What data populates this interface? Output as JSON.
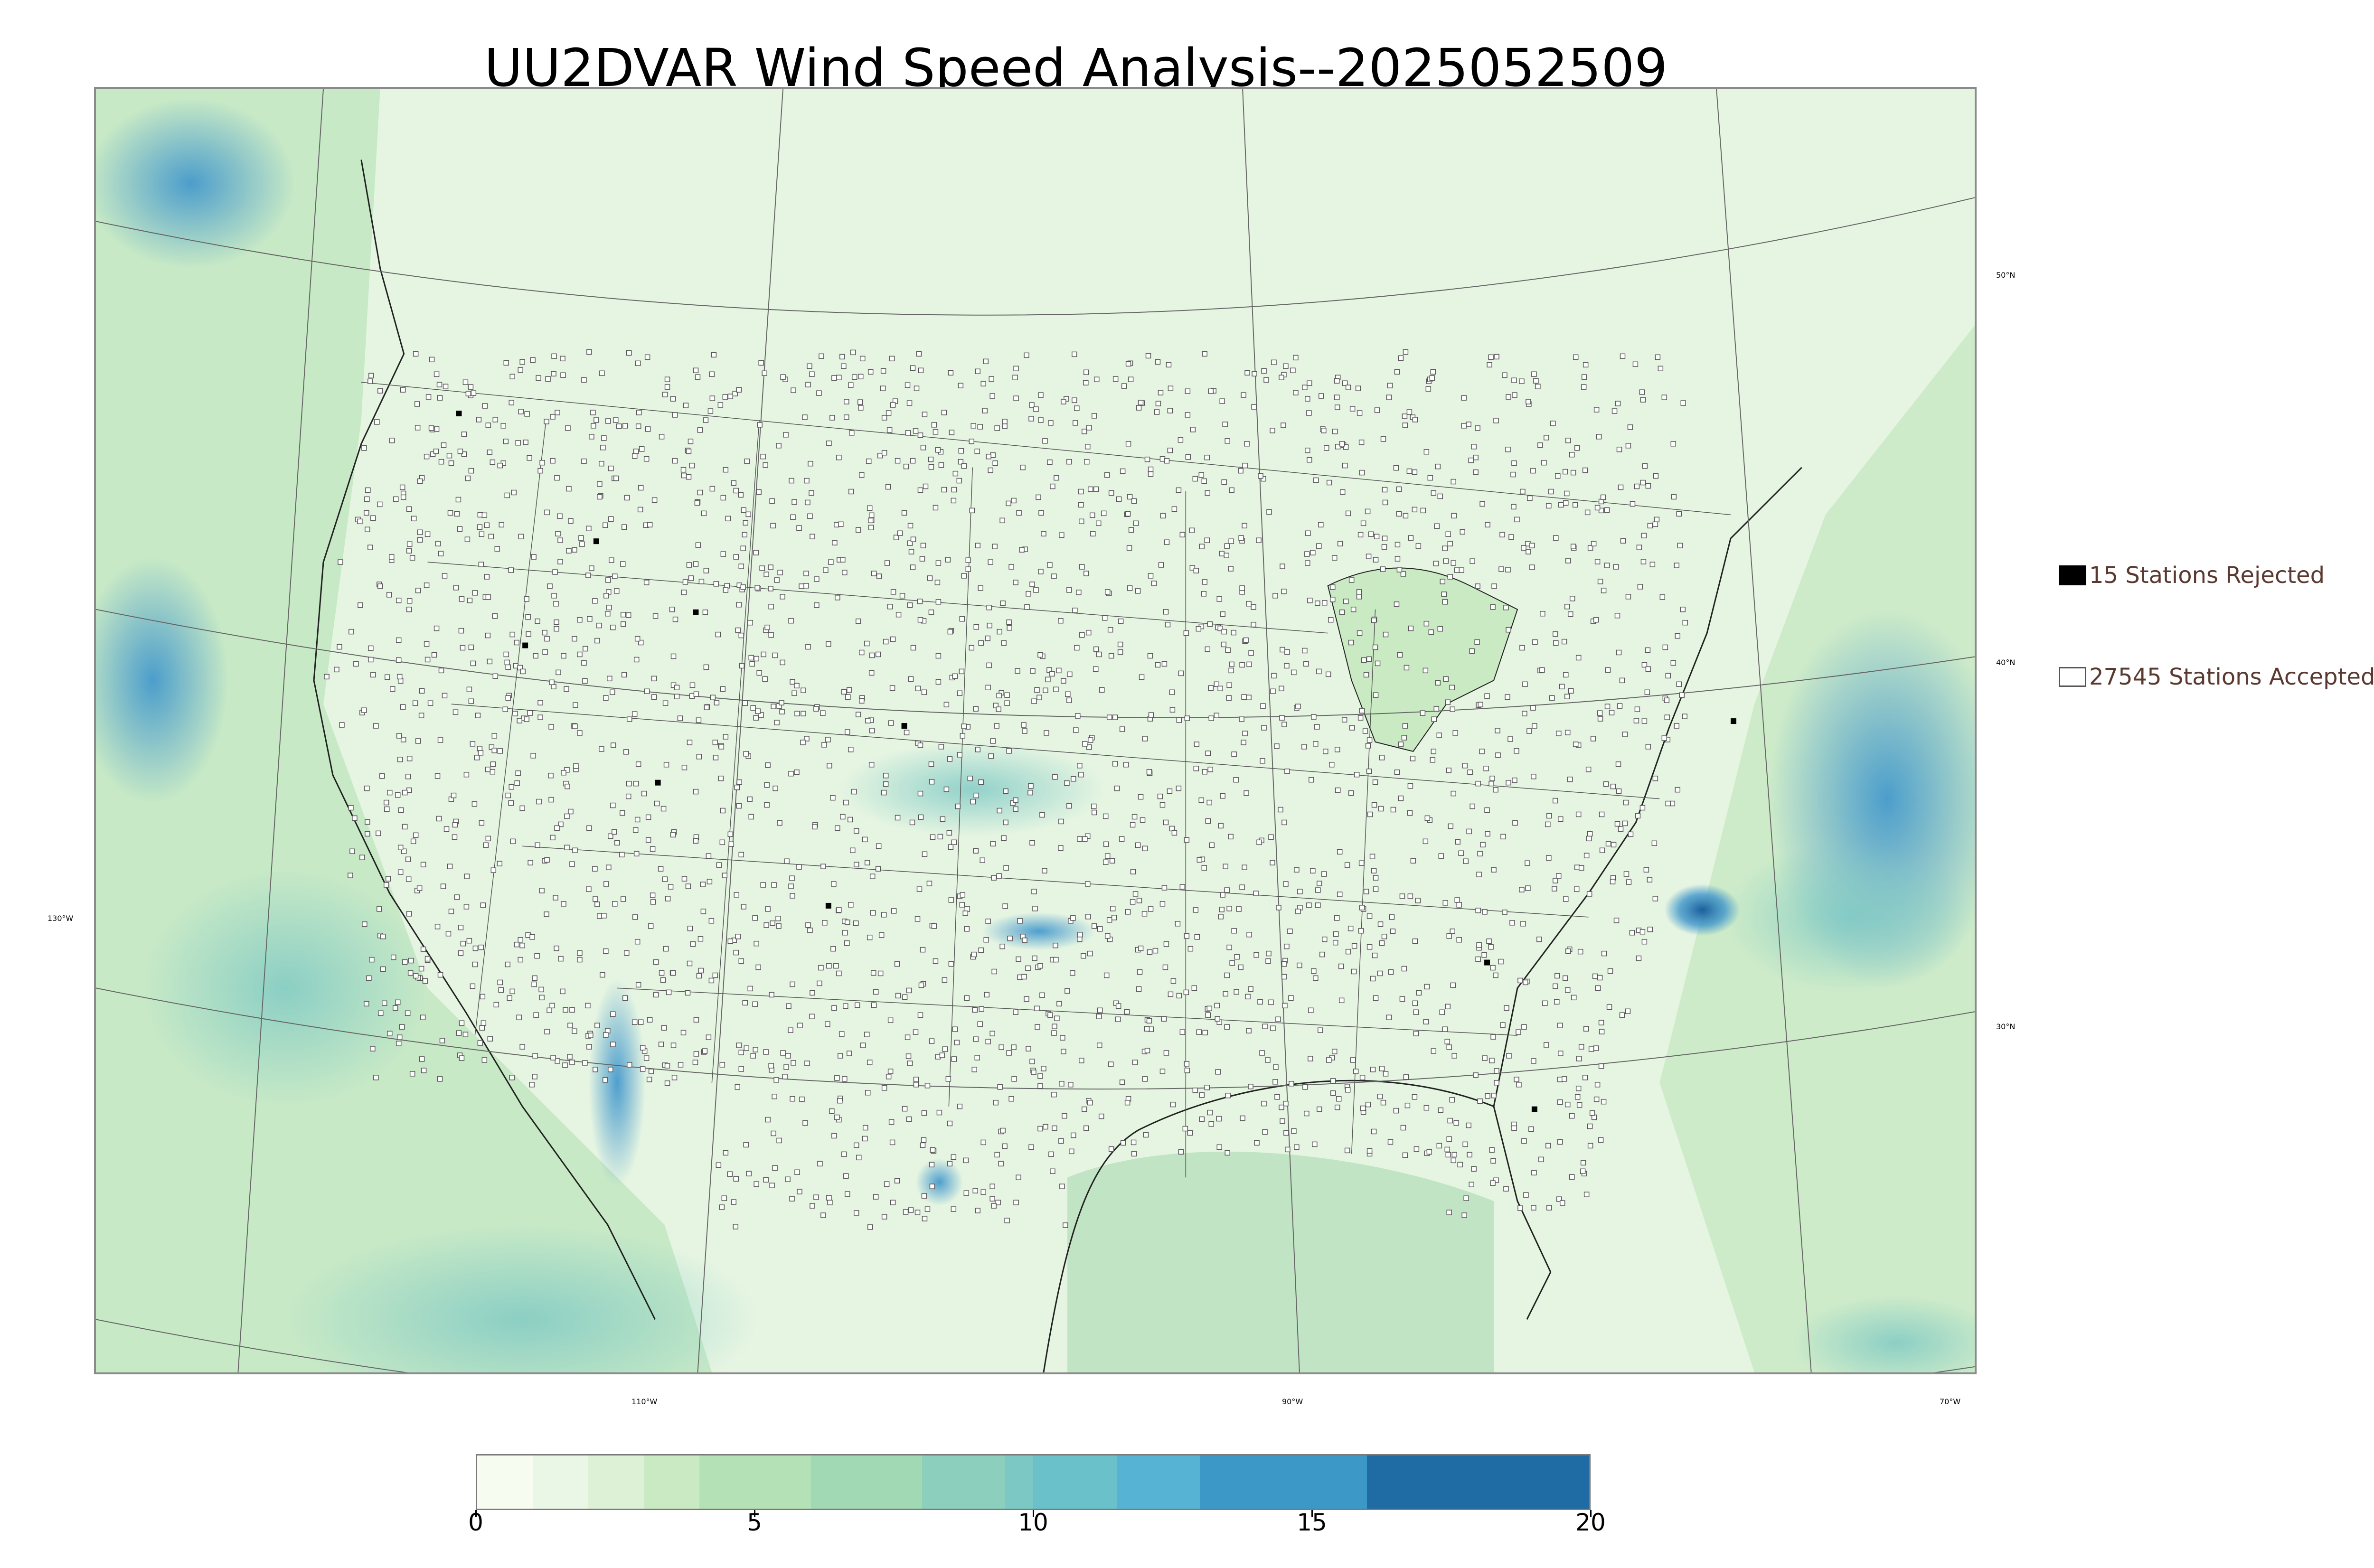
{
  "title": "UU2DVAR Wind Speed Analysis--2025052509",
  "map": {
    "longitude_labels": [
      "110°W",
      "90°W",
      "70°W"
    ],
    "latitude_labels": [
      "50°N",
      "40°N",
      "30°N"
    ],
    "left_label": "130°W"
  },
  "legend": {
    "rejected": "15 Stations Rejected",
    "accepted": "27545 Stations Accepted"
  },
  "colorbar": {
    "ticks": [
      "0",
      "5",
      "10",
      "15",
      "20"
    ],
    "segment_colors": [
      "#f7fcf0",
      "#eaf7e6",
      "#dcf1d6",
      "#c9eac2",
      "#b5e1b6",
      "#a0d9b4",
      "#8bcfbc",
      "#7bc8c4",
      "#6bc1ca",
      "#56b3d3",
      "#3c98c7",
      "#1f6ba4",
      "#14639c"
    ],
    "segment_bounds": [
      0,
      1,
      2,
      3,
      4,
      6,
      8,
      9.5,
      10,
      11.5,
      13,
      16,
      20
    ]
  },
  "colors": {
    "land": "#dff3dc",
    "ocean_light": "#bfe6c6",
    "ocean_mid": "#7cc8c4",
    "high_wind": "#3e95cc",
    "max_wind": "#1a5f9a"
  }
}
